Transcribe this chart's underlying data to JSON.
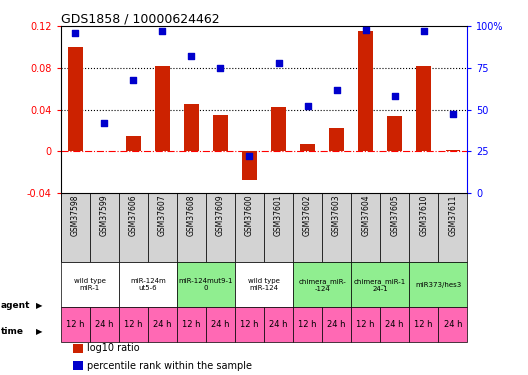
{
  "title": "GDS1858 / 10000624462",
  "samples": [
    "GSM37598",
    "GSM37599",
    "GSM37606",
    "GSM37607",
    "GSM37608",
    "GSM37609",
    "GSM37600",
    "GSM37601",
    "GSM37602",
    "GSM37603",
    "GSM37604",
    "GSM37605",
    "GSM37610",
    "GSM37611"
  ],
  "log10_ratio": [
    0.1,
    0.0,
    0.015,
    0.082,
    0.045,
    0.035,
    -0.028,
    0.042,
    0.007,
    0.022,
    0.115,
    0.034,
    0.082,
    0.001
  ],
  "percentile_rank": [
    96,
    42,
    68,
    97,
    82,
    75,
    22,
    78,
    52,
    62,
    98,
    58,
    97,
    47
  ],
  "agents": [
    {
      "label": "wild type\nmiR-1",
      "span": [
        0,
        2
      ],
      "color": "#ffffff"
    },
    {
      "label": "miR-124m\nut5-6",
      "span": [
        2,
        4
      ],
      "color": "#ffffff"
    },
    {
      "label": "miR-124mut9-1\n0",
      "span": [
        4,
        6
      ],
      "color": "#90ee90"
    },
    {
      "label": "wild type\nmiR-124",
      "span": [
        6,
        8
      ],
      "color": "#ffffff"
    },
    {
      "label": "chimera_miR-\n-124",
      "span": [
        8,
        10
      ],
      "color": "#90ee90"
    },
    {
      "label": "chimera_miR-1\n24-1",
      "span": [
        10,
        12
      ],
      "color": "#90ee90"
    },
    {
      "label": "miR373/hes3",
      "span": [
        12,
        14
      ],
      "color": "#90ee90"
    }
  ],
  "time_labels": [
    "12 h",
    "24 h",
    "12 h",
    "24 h",
    "12 h",
    "24 h",
    "12 h",
    "24 h",
    "12 h",
    "24 h",
    "12 h",
    "24 h",
    "12 h",
    "24 h"
  ],
  "time_color": "#ff69b4",
  "sample_bg": "#d3d3d3",
  "bar_color": "#cc2200",
  "dot_color": "#0000cc",
  "ylim_left": [
    -0.04,
    0.12
  ],
  "ylim_right": [
    0,
    100
  ],
  "yticks_left": [
    -0.04,
    0.0,
    0.04,
    0.08,
    0.12
  ],
  "yticks_right": [
    0,
    25,
    50,
    75,
    100
  ],
  "hline_y": 0.0,
  "dotted_lines": [
    0.04,
    0.08
  ],
  "legend_items": [
    {
      "label": "log10 ratio",
      "color": "#cc2200"
    },
    {
      "label": "percentile rank within the sample",
      "color": "#0000cc"
    }
  ]
}
